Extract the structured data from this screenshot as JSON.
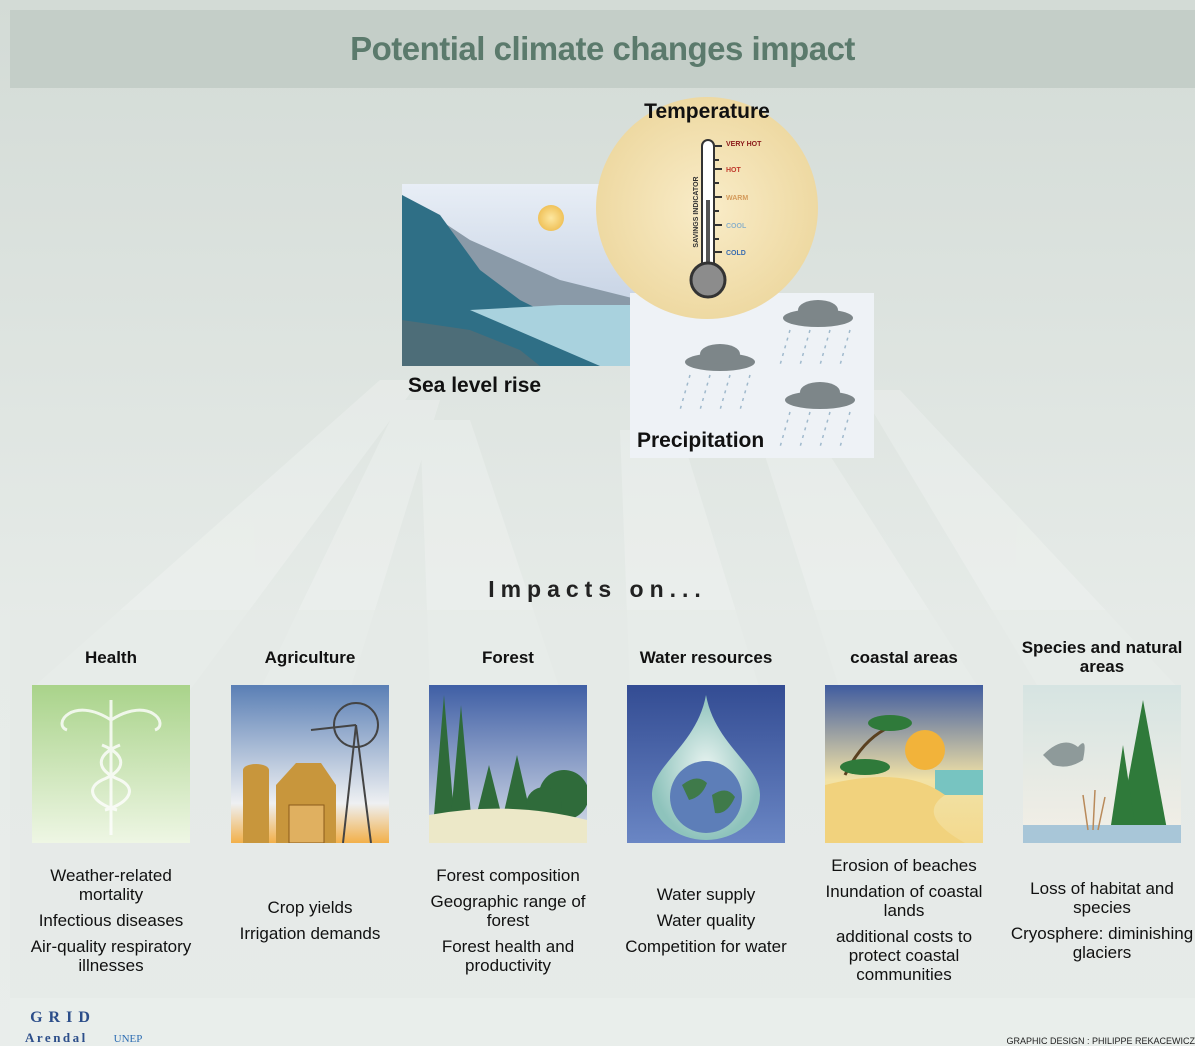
{
  "header": {
    "title": "Potential climate changes impact"
  },
  "drivers": {
    "temperature": {
      "label": "Temperature",
      "indicator": "SAVINGS INDICATOR",
      "scale": [
        "VERY HOT",
        "HOT",
        "WARM",
        "COOL",
        "COLD"
      ]
    },
    "sea_level": {
      "label": "Sea level rise"
    },
    "precipitation": {
      "label": "Precipitation"
    }
  },
  "impacts": {
    "heading": "Impacts on...",
    "sectors": [
      {
        "title": "Health",
        "items": [
          "Weather-related mortality",
          "Infectious diseases",
          "Air-quality respiratory illnesses"
        ]
      },
      {
        "title": "Agriculture",
        "items": [
          "Crop yields",
          "Irrigation demands"
        ]
      },
      {
        "title": "Forest",
        "items": [
          "Forest composition",
          "Geographic range of forest",
          "Forest health and productivity"
        ]
      },
      {
        "title": "Water resources",
        "items": [
          "Water supply",
          "Water quality",
          "Competition for water"
        ]
      },
      {
        "title": "coastal areas",
        "items": [
          "Erosion of beaches",
          "Inundation of coastal lands",
          "additional costs to protect coastal communities"
        ]
      },
      {
        "title": "Species and natural areas",
        "items": [
          "Loss of habitat and species",
          "Cryosphere: diminishing glaciers"
        ]
      }
    ]
  },
  "footer": {
    "logo_top": "GRID",
    "logo_bottom": "Arendal",
    "unep": "UNEP",
    "credit": "GRAPHIC DESIGN : PHILIPPE REKACEWICZ"
  }
}
